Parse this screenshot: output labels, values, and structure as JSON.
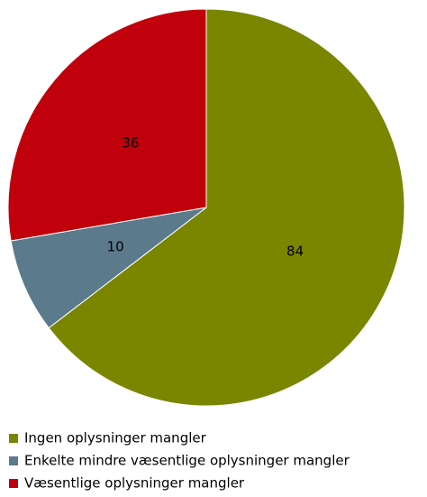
{
  "chart_data": {
    "type": "pie",
    "categories": [
      "Ingen oplysninger mangler",
      "Enkelte mindre væsentlige oplysninger mangler",
      "Væsentlige oplysninger mangler"
    ],
    "values": [
      84,
      10,
      36
    ],
    "colors": [
      "#7a8500",
      "#5b7a8c",
      "#c0000b"
    ],
    "legend": "bottom"
  }
}
